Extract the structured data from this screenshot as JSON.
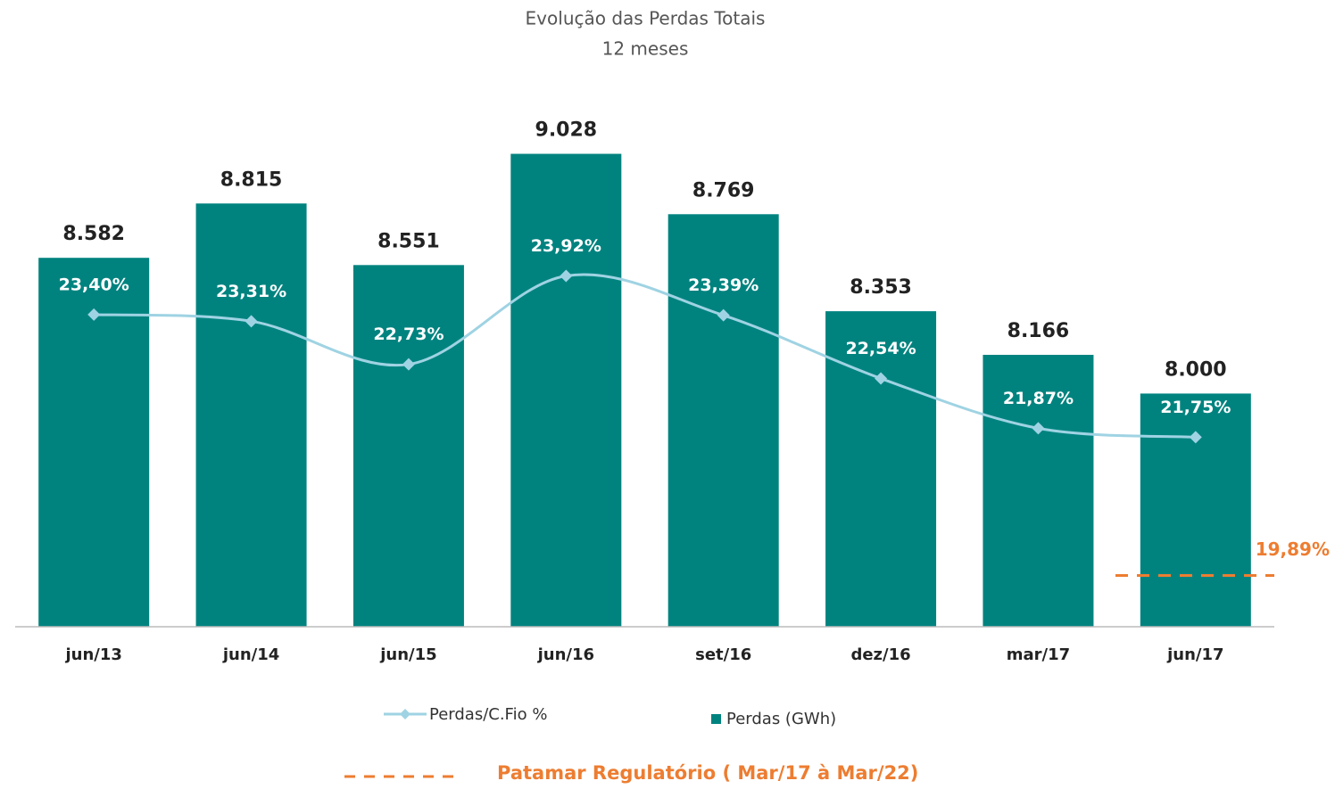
{
  "chart_data": {
    "type": "bar-line",
    "title": "Evolução das Perdas Totais",
    "subtitle": "12 meses",
    "categories": [
      "jun/13",
      "jun/14",
      "jun/15",
      "jun/16",
      "set/16",
      "dez/16",
      "mar/17",
      "jun/17"
    ],
    "series": [
      {
        "name": "Perdas/C.Fio %",
        "type": "line",
        "axis": "y2",
        "color": "#9fd3e3",
        "values": [
          23.4,
          23.31,
          22.73,
          23.92,
          23.39,
          22.54,
          21.87,
          21.75
        ],
        "value_labels": [
          "23,40%",
          "23,31%",
          "22,73%",
          "23,92%",
          "23,39%",
          "22,54%",
          "21,87%",
          "21,75%"
        ]
      },
      {
        "name": "Perdas (GWh)",
        "type": "bar",
        "color": "#00837f",
        "values": [
          8582,
          8815,
          8551,
          9028,
          8769,
          8353,
          8166,
          8000
        ],
        "value_labels": [
          "8.582",
          "8.815",
          "8.551",
          "9.028",
          "8.769",
          "8.353",
          "8.166",
          "8.000"
        ]
      }
    ],
    "reference": {
      "name": "Patamar Regulatório ( Mar/17 à Mar/22)",
      "value": 19.89,
      "label": "19,89%",
      "axis": "y2",
      "color": "#ed7d31"
    },
    "ylim": [
      7000,
      9550
    ],
    "y2lim": [
      19.2,
      27.2
    ],
    "grid": false
  }
}
